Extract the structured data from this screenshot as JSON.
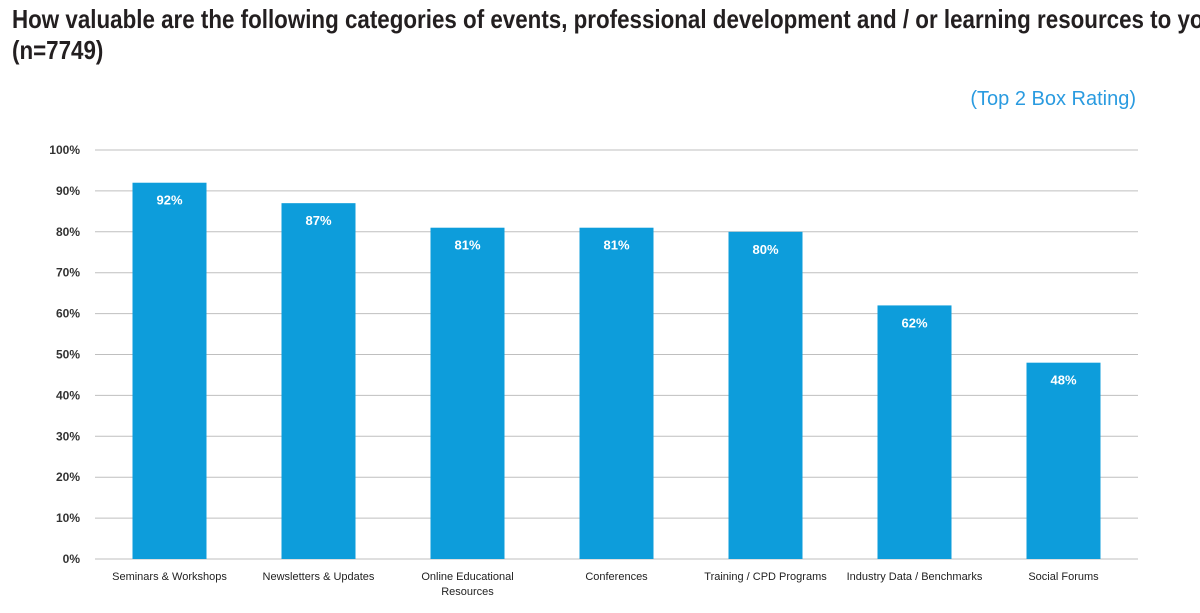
{
  "chart_data": {
    "type": "bar",
    "title": "How valuable are the following categories of events, professional development and / or learning resources to you?",
    "title_line2": "(n=7749)",
    "subtitle": "(Top 2 Box Rating)",
    "categories": [
      "Seminars & Workshops",
      "Newsletters & Updates",
      "Online Educational Resources",
      "Conferences",
      "Training / CPD Programs",
      "Industry Data / Benchmarks",
      "Social Forums"
    ],
    "category_lines": [
      [
        "Seminars & Workshops"
      ],
      [
        "Newsletters & Updates"
      ],
      [
        "Online Educational",
        "Resources"
      ],
      [
        "Conferences"
      ],
      [
        "Training / CPD Programs"
      ],
      [
        "Industry Data / Benchmarks"
      ],
      [
        "Social Forums"
      ]
    ],
    "values": [
      92,
      87,
      81,
      81,
      80,
      62,
      48
    ],
    "value_labels": [
      "92%",
      "87%",
      "81%",
      "81%",
      "80%",
      "62%",
      "48%"
    ],
    "ylim": [
      0,
      100
    ],
    "yticks": [
      "0%",
      "10%",
      "20%",
      "30%",
      "40%",
      "50%",
      "60%",
      "70%",
      "80%",
      "90%",
      "100%"
    ],
    "xlabel": "",
    "ylabel": "",
    "grid": true,
    "legend": "none",
    "colors": {
      "bar": "#0d9ddb",
      "grid": "#bfbfbf",
      "subtitle": "#2a9be0",
      "title": "#231f20"
    }
  }
}
